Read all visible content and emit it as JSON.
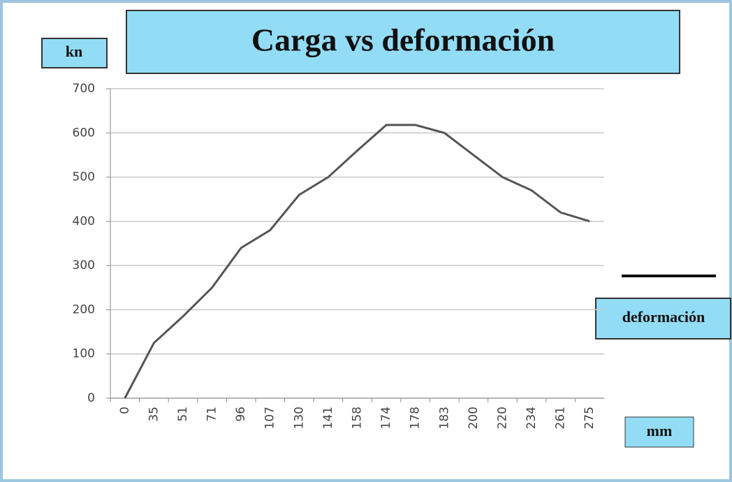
{
  "chart_data": {
    "type": "line",
    "title": "Carga vs deformación",
    "y_label": "kn",
    "x_label": "mm",
    "categories": [
      "0",
      "35",
      "51",
      "71",
      "96",
      "107",
      "130",
      "141",
      "158",
      "174",
      "178",
      "183",
      "200",
      "220",
      "234",
      "261",
      "275"
    ],
    "series": [
      {
        "name": "deformación",
        "color": "#555555",
        "values": [
          0,
          125,
          185,
          250,
          340,
          380,
          460,
          500,
          560,
          618,
          618,
          600,
          550,
          500,
          470,
          420,
          400
        ]
      }
    ],
    "ylim": [
      0,
      700
    ],
    "yticks": [
      0,
      100,
      200,
      300,
      400,
      500,
      600,
      700
    ],
    "grid": true,
    "legend": "right"
  }
}
